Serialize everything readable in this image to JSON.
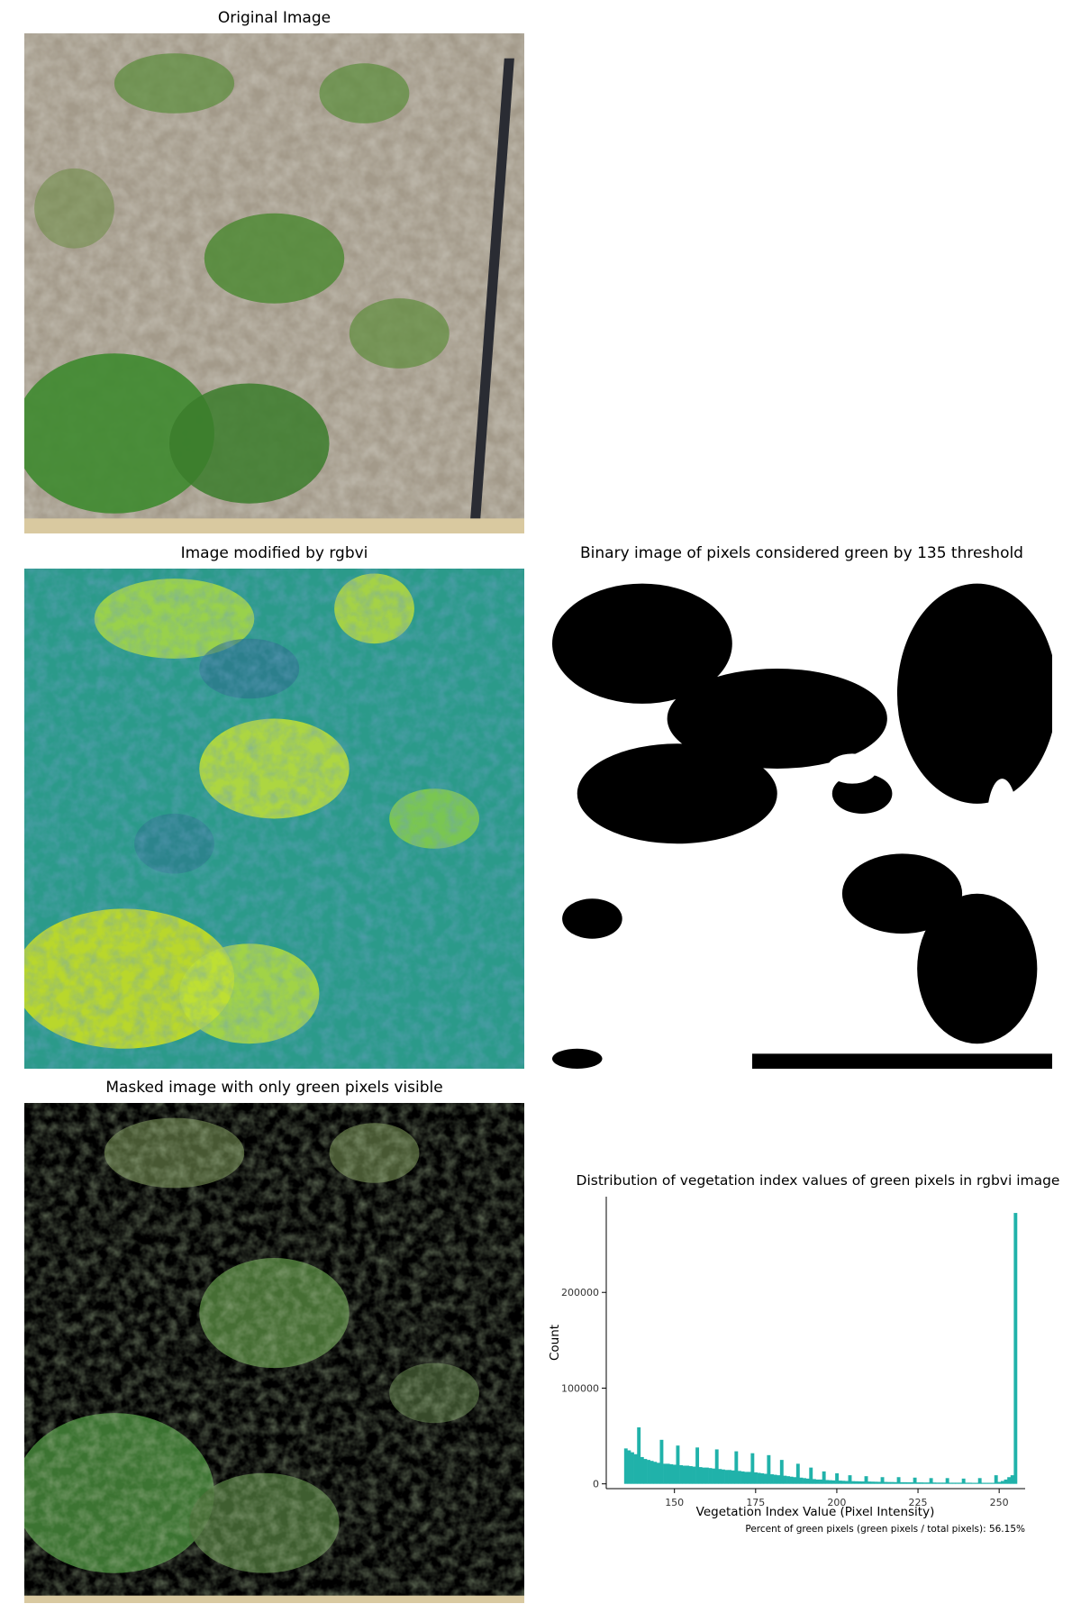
{
  "panels": {
    "original": {
      "title": "Original Image"
    },
    "rgbvi": {
      "title": "Image modified by rgbvi"
    },
    "binary": {
      "title": "Binary image of pixels considered green by 135 threshold"
    },
    "masked": {
      "title": "Masked image with only green pixels visible"
    }
  },
  "chart_data": {
    "type": "bar",
    "title": "Distribution of vegetation index values of green pixels in rgbvi image",
    "xlabel": "Vegetation Index Value (Pixel Intensity)",
    "ylabel": "Count",
    "xlim": [
      129,
      258
    ],
    "ylim": [
      -5000,
      300000
    ],
    "xticks": [
      150,
      175,
      200,
      225,
      250
    ],
    "yticks": [
      0,
      100000,
      200000
    ],
    "color": "#20b2aa",
    "grid": false,
    "x": [
      135,
      136,
      137,
      138,
      139,
      140,
      141,
      142,
      143,
      144,
      145,
      146,
      147,
      148,
      149,
      150,
      151,
      152,
      153,
      154,
      155,
      156,
      157,
      158,
      159,
      160,
      161,
      162,
      163,
      164,
      165,
      166,
      167,
      168,
      169,
      170,
      171,
      172,
      173,
      174,
      175,
      176,
      177,
      178,
      179,
      180,
      181,
      182,
      183,
      184,
      185,
      186,
      187,
      188,
      189,
      190,
      191,
      192,
      193,
      194,
      195,
      196,
      197,
      198,
      199,
      200,
      201,
      202,
      203,
      204,
      205,
      206,
      207,
      208,
      209,
      210,
      211,
      212,
      213,
      214,
      215,
      216,
      217,
      218,
      219,
      220,
      221,
      222,
      223,
      224,
      225,
      226,
      227,
      228,
      229,
      230,
      231,
      232,
      233,
      234,
      235,
      236,
      237,
      238,
      239,
      240,
      241,
      242,
      243,
      244,
      245,
      246,
      247,
      248,
      249,
      250,
      251,
      252,
      253,
      254,
      255
    ],
    "values": [
      37000,
      35000,
      33000,
      31000,
      59000,
      28000,
      26000,
      25000,
      24000,
      23000,
      22000,
      46000,
      21000,
      21000,
      20500,
      20000,
      40000,
      19500,
      19000,
      19000,
      18500,
      18000,
      38000,
      17500,
      17000,
      17000,
      16500,
      16000,
      36000,
      15500,
      15000,
      14500,
      14500,
      14000,
      34000,
      13500,
      13000,
      12500,
      12500,
      32000,
      12000,
      11500,
      11000,
      10500,
      30000,
      10000,
      9500,
      9000,
      25000,
      8500,
      8000,
      7500,
      7000,
      21000,
      6500,
      6000,
      5500,
      17000,
      5000,
      4500,
      4500,
      13000,
      4000,
      3800,
      3600,
      11000,
      3400,
      3200,
      3000,
      9000,
      2800,
      2700,
      2600,
      2500,
      8000,
      2400,
      2300,
      2200,
      2100,
      7000,
      2000,
      1900,
      1900,
      1800,
      7000,
      1700,
      1700,
      1600,
      1600,
      6500,
      1500,
      1500,
      1400,
      1400,
      6000,
      1400,
      1300,
      1300,
      1300,
      6000,
      1200,
      1200,
      1200,
      1200,
      5500,
      1200,
      1200,
      1100,
      1100,
      6000,
      1100,
      1100,
      1100,
      1100,
      9000,
      2000,
      3000,
      4500,
      7000,
      9000,
      283000
    ],
    "annotation": "Percent of green pixels (green pixels / total pixels): 56.15%"
  }
}
